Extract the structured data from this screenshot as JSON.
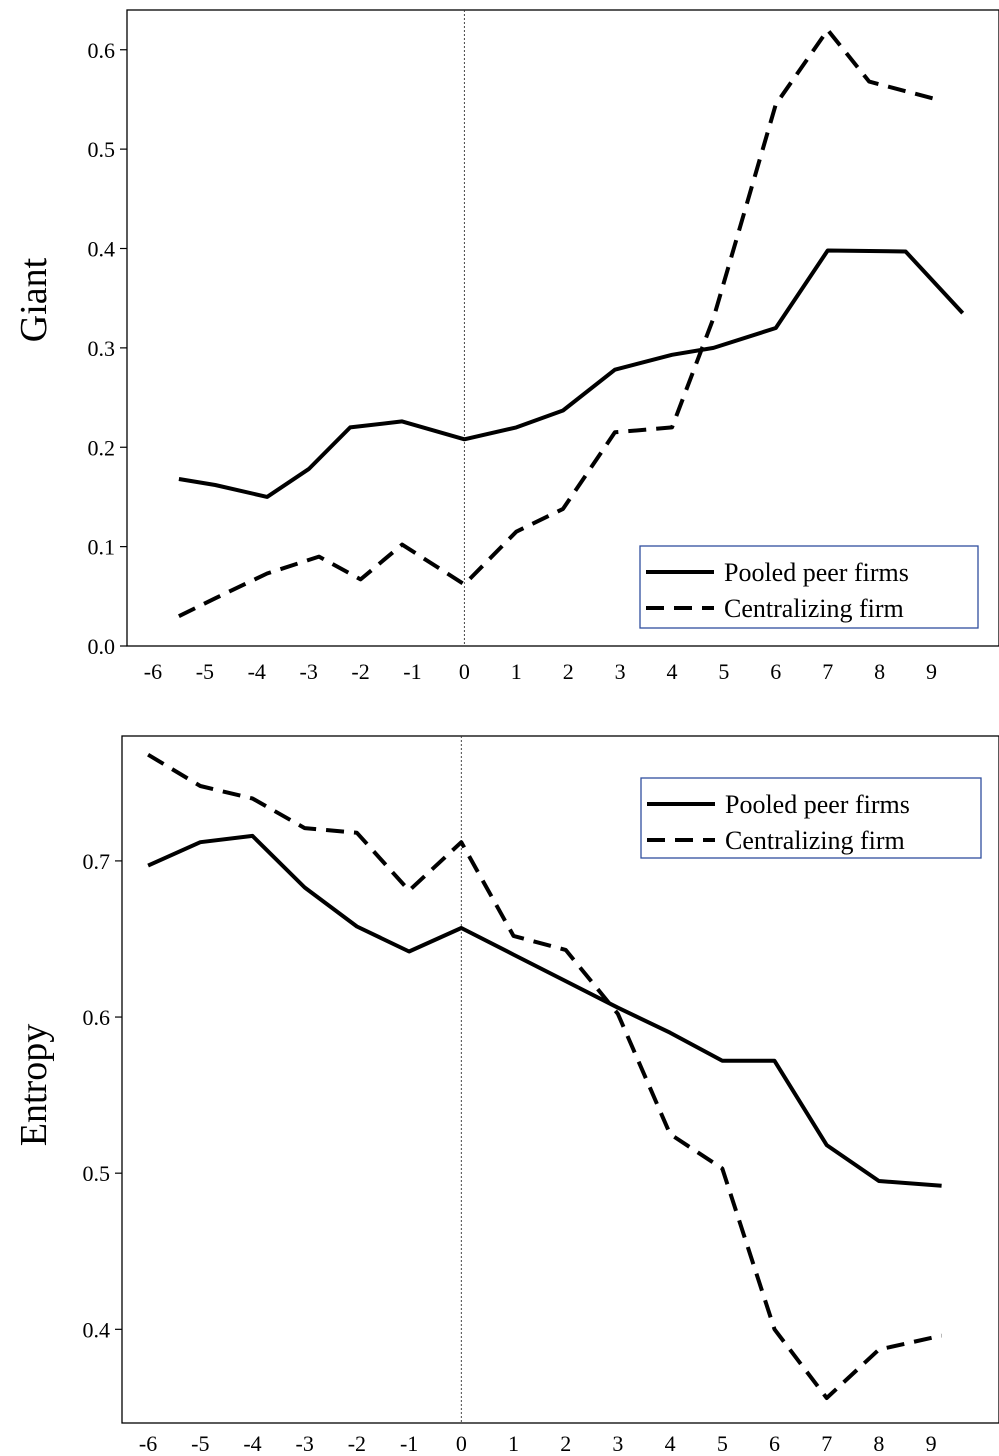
{
  "chart_data": [
    {
      "type": "line",
      "title": "",
      "xlabel": "",
      "ylabel": "Giant",
      "xlim": [
        -6.5,
        10.3
      ],
      "ylim": [
        0.0,
        0.64
      ],
      "x_ticks": [
        -6,
        -5,
        -4,
        -3,
        -2,
        -1,
        0,
        1,
        2,
        3,
        4,
        5,
        6,
        7,
        8,
        9
      ],
      "y_ticks": [
        0.0,
        0.1,
        0.2,
        0.3,
        0.4,
        0.5,
        0.6
      ],
      "y_tick_labels": [
        "0.0",
        "0.1",
        "0.2",
        "0.3",
        "0.4",
        "0.5",
        "0.6"
      ],
      "event_line_x": 0,
      "grid": false,
      "legend_position": "bottom-right",
      "series": [
        {
          "name": "Pooled peer firms",
          "style": "solid",
          "x": [
            -5.5,
            -4.8,
            -3.8,
            -3.0,
            -2.2,
            -1.2,
            0.0,
            1.0,
            1.9,
            2.9,
            4.0,
            4.8,
            6.0,
            7.0,
            8.5,
            9.6
          ],
          "y": [
            0.168,
            0.162,
            0.15,
            0.178,
            0.22,
            0.226,
            0.208,
            0.22,
            0.237,
            0.278,
            0.293,
            0.3,
            0.32,
            0.398,
            0.397,
            0.335
          ]
        },
        {
          "name": "Centralizing firm",
          "style": "dashed",
          "x": [
            -5.5,
            -4.8,
            -3.8,
            -2.8,
            -2.0,
            -1.2,
            0.0,
            1.0,
            1.9,
            2.9,
            4.0,
            4.8,
            6.0,
            7.0,
            7.8,
            9.1
          ],
          "y": [
            0.03,
            0.048,
            0.073,
            0.09,
            0.067,
            0.102,
            0.062,
            0.115,
            0.138,
            0.215,
            0.22,
            0.33,
            0.545,
            0.62,
            0.568,
            0.55
          ]
        }
      ]
    },
    {
      "type": "line",
      "title": "",
      "xlabel": "",
      "ylabel": "Entropy",
      "xlim": [
        -6.5,
        10.3
      ],
      "ylim": [
        0.34,
        0.78
      ],
      "x_ticks": [
        -6,
        -5,
        -4,
        -3,
        -2,
        -1,
        0,
        1,
        2,
        3,
        4,
        5,
        6,
        7,
        8,
        9
      ],
      "y_ticks": [
        0.4,
        0.5,
        0.6,
        0.7
      ],
      "y_tick_labels": [
        "0.4",
        "0.5",
        "0.6",
        "0.7"
      ],
      "event_line_x": 0,
      "grid": false,
      "legend_position": "top-right",
      "series": [
        {
          "name": "Pooled peer firms",
          "style": "solid",
          "x": [
            -6.0,
            -5.0,
            -4.0,
            -3.0,
            -2.0,
            -1.0,
            0.0,
            1.0,
            2.0,
            3.0,
            4.0,
            5.0,
            6.0,
            7.0,
            8.0,
            9.2
          ],
          "y": [
            0.697,
            0.712,
            0.716,
            0.683,
            0.658,
            0.642,
            0.657,
            0.64,
            0.623,
            0.606,
            0.59,
            0.572,
            0.572,
            0.518,
            0.495,
            0.492
          ]
        },
        {
          "name": "Centralizing firm",
          "style": "dashed",
          "x": [
            -6.0,
            -5.0,
            -4.0,
            -3.0,
            -2.0,
            -1.0,
            0.0,
            1.0,
            2.0,
            3.0,
            4.0,
            5.0,
            6.0,
            7.0,
            8.0,
            9.2
          ],
          "y": [
            0.768,
            0.748,
            0.74,
            0.721,
            0.718,
            0.681,
            0.712,
            0.652,
            0.643,
            0.602,
            0.525,
            0.503,
            0.4,
            0.356,
            0.387,
            0.396
          ]
        }
      ]
    }
  ]
}
